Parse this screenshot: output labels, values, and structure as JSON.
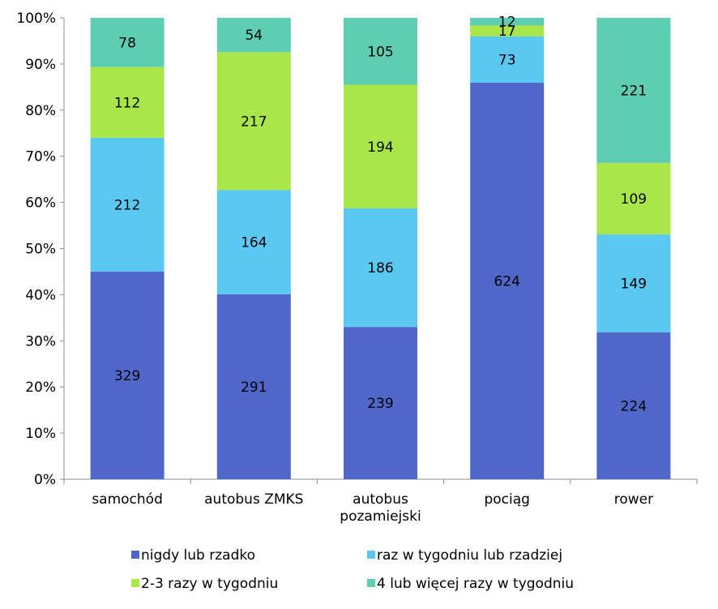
{
  "chart_data": {
    "type": "bar",
    "stacked": "percent",
    "categories": [
      "samochód",
      "autobus ZMKS",
      "autobus\npozamiejski",
      "pociąg",
      "rower"
    ],
    "series": [
      {
        "name": "nigdy lub rzadko",
        "color": "#4F67C8",
        "values": [
          329,
          291,
          239,
          624,
          224
        ]
      },
      {
        "name": "raz w tygodniu lub rzadziej",
        "color": "#5BC8F2",
        "values": [
          212,
          164,
          186,
          73,
          149
        ]
      },
      {
        "name": "2-3 razy w tygodniu",
        "color": "#A9E64A",
        "values": [
          112,
          217,
          194,
          17,
          109
        ]
      },
      {
        "name": "4 lub więcej razy w tygodniu",
        "color": "#5ECDB2",
        "values": [
          78,
          54,
          105,
          12,
          221
        ]
      }
    ],
    "y_ticks": [
      "0%",
      "10%",
      "20%",
      "30%",
      "40%",
      "50%",
      "60%",
      "70%",
      "80%",
      "90%",
      "100%"
    ],
    "ylim": [
      0,
      100
    ],
    "grid": false,
    "legend_position": "bottom"
  }
}
